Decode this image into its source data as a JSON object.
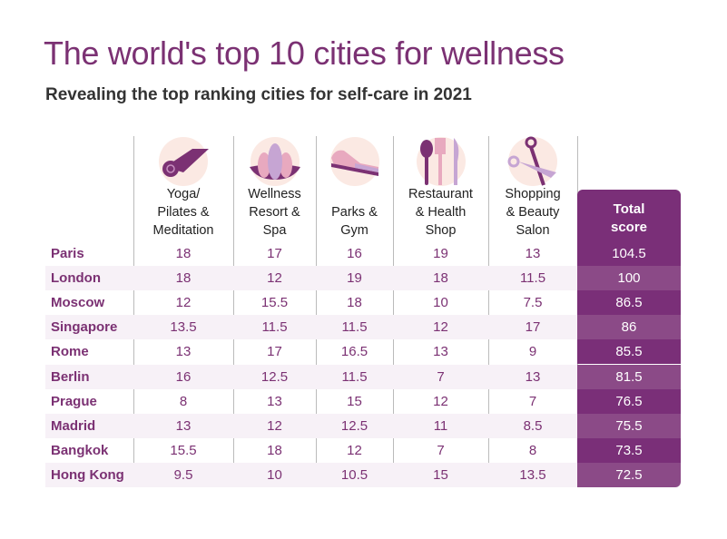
{
  "title": "The world's top 10 cities for wellness",
  "subtitle": "Revealing the top ranking cities for self-care in 2021",
  "colors": {
    "accent": "#7b3173",
    "total_dark": "#7a2f78",
    "total_light": "#8b4a87",
    "row_alt": "#f7f1f7",
    "icon_bg": "#fbe9e3"
  },
  "chart_data": {
    "type": "table",
    "columns": [
      {
        "label": "Yoga/ Pilates & Meditation",
        "lines": [
          "Yoga/",
          "Pilates &",
          "Meditation"
        ],
        "icon": "yoga-mat-icon"
      },
      {
        "label": "Wellness Resort & Spa",
        "lines": [
          "Wellness",
          "Resort &",
          "Spa"
        ],
        "icon": "lotus-icon"
      },
      {
        "label": "Parks & Gym",
        "lines": [
          "Parks &",
          "Gym"
        ],
        "icon": "sneaker-icon"
      },
      {
        "label": "Restaurant & Health Shop",
        "lines": [
          "Restaurant",
          "& Health",
          "Shop"
        ],
        "icon": "cutlery-icon"
      },
      {
        "label": "Shopping & Beauty Salon",
        "lines": [
          "Shopping",
          "& Beauty",
          "Salon"
        ],
        "icon": "scissors-icon"
      }
    ],
    "total_label": [
      "Total",
      "score"
    ],
    "rows": [
      {
        "city": "Paris",
        "values": [
          "18",
          "17",
          "16",
          "19",
          "13"
        ],
        "total": "104.5"
      },
      {
        "city": "London",
        "values": [
          "18",
          "12",
          "19",
          "18",
          "11.5"
        ],
        "total": "100"
      },
      {
        "city": "Moscow",
        "values": [
          "12",
          "15.5",
          "18",
          "10",
          "7.5"
        ],
        "total": "86.5"
      },
      {
        "city": "Singapore",
        "values": [
          "13.5",
          "11.5",
          "11.5",
          "12",
          "17"
        ],
        "total": "86"
      },
      {
        "city": "Rome",
        "values": [
          "13",
          "17",
          "16.5",
          "13",
          "9"
        ],
        "total": "85.5"
      },
      {
        "city": "Berlin",
        "values": [
          "16",
          "12.5",
          "11.5",
          "7",
          "13"
        ],
        "total": "81.5"
      },
      {
        "city": "Prague",
        "values": [
          "8",
          "13",
          "15",
          "12",
          "7"
        ],
        "total": "76.5"
      },
      {
        "city": "Madrid",
        "values": [
          "13",
          "12",
          "12.5",
          "11",
          "8.5"
        ],
        "total": "75.5"
      },
      {
        "city": "Bangkok",
        "values": [
          "15.5",
          "18",
          "12",
          "7",
          "8"
        ],
        "total": "73.5"
      },
      {
        "city": "Hong Kong",
        "values": [
          "9.5",
          "10",
          "10.5",
          "15",
          "13.5"
        ],
        "total": "72.5"
      }
    ]
  }
}
